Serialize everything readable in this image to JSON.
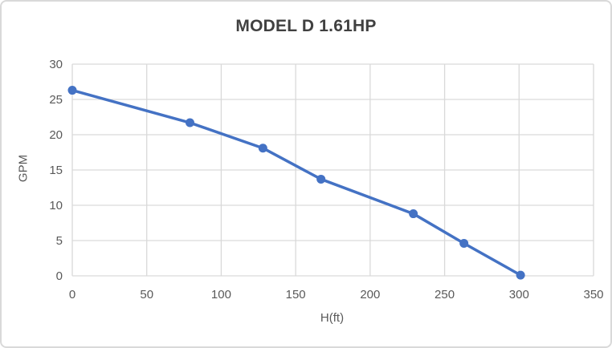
{
  "window": {
    "background": "#FFFFFF",
    "border_color": "#D9D9D9"
  },
  "chart_data": {
    "type": "line",
    "title": "MODEL D 1.61HP",
    "xlabel": "H(ft)",
    "ylabel": "GPM",
    "xlim": [
      0,
      350
    ],
    "ylim": [
      0,
      30
    ],
    "x_ticks": [
      0,
      50,
      100,
      150,
      200,
      250,
      300,
      350
    ],
    "y_ticks": [
      0,
      5,
      10,
      15,
      20,
      25,
      30
    ],
    "grid": true,
    "legend": "none",
    "series": [
      {
        "color": "#4472C4",
        "marker": "circle",
        "x": [
          0,
          79,
          128,
          167,
          229,
          263,
          301
        ],
        "y": [
          26.3,
          21.7,
          18.1,
          13.7,
          8.8,
          4.6,
          0.1
        ]
      }
    ],
    "colors": {
      "gridline": "#D9D9D9",
      "tick_label": "#595959",
      "axis_title": "#595959",
      "title": "#404040"
    }
  }
}
